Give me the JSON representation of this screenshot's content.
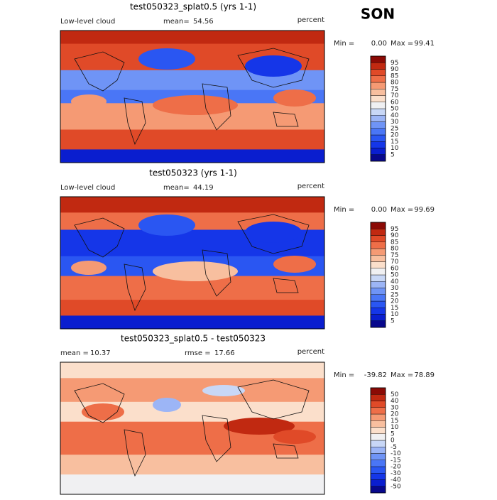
{
  "season": "SON",
  "panels": [
    {
      "title": "test050323_splat0.5 (yrs 1-1)",
      "variable": "Low-level cloud",
      "stats": [
        {
          "label": "mean=",
          "value": "54.56"
        }
      ],
      "units": "percent",
      "min_label": "Min =",
      "min": "0.00",
      "max_label": "Max =",
      "max": "99.41",
      "levels": [
        5,
        10,
        15,
        20,
        25,
        30,
        40,
        50,
        60,
        70,
        75,
        80,
        85,
        90,
        95
      ],
      "colors": [
        "#08088c",
        "#0a1ecf",
        "#1536e8",
        "#2a56f2",
        "#4a76f6",
        "#6f94f6",
        "#9cb5f6",
        "#c8d7f6",
        "#f0f0f2",
        "#fbdfcb",
        "#f8bf9f",
        "#f59a74",
        "#ee6e48",
        "#e04a28",
        "#c12911",
        "#8b0a05"
      ]
    },
    {
      "title": "test050323 (yrs 1-1)",
      "variable": "Low-level cloud",
      "stats": [
        {
          "label": "mean=",
          "value": "44.19"
        }
      ],
      "units": "percent",
      "min_label": "Min =",
      "min": "0.00",
      "max_label": "Max =",
      "max": "99.69",
      "levels": [
        5,
        10,
        15,
        20,
        25,
        30,
        40,
        50,
        60,
        70,
        75,
        80,
        85,
        90,
        95
      ],
      "colors": [
        "#08088c",
        "#0a1ecf",
        "#1536e8",
        "#2a56f2",
        "#4a76f6",
        "#6f94f6",
        "#9cb5f6",
        "#c8d7f6",
        "#f0f0f2",
        "#fbdfcb",
        "#f8bf9f",
        "#f59a74",
        "#ee6e48",
        "#e04a28",
        "#c12911",
        "#8b0a05"
      ]
    },
    {
      "title": "test050323_splat0.5 - test050323",
      "stats": [
        {
          "label": "mean =",
          "value": "10.37"
        },
        {
          "label": "rmse =",
          "value": "17.66"
        }
      ],
      "units": "percent",
      "min_label": "Min =",
      "min": "-39.82",
      "max_label": "Max =",
      "max": "78.89",
      "levels": [
        -50,
        -40,
        -30,
        -20,
        -15,
        -10,
        -5,
        0,
        5,
        10,
        15,
        20,
        30,
        40,
        50
      ],
      "colors": [
        "#08088c",
        "#0a1ecf",
        "#1536e8",
        "#2a56f2",
        "#4a76f6",
        "#6f94f6",
        "#9cb5f6",
        "#c8d7f6",
        "#f0f0f2",
        "#fbdfcb",
        "#f8bf9f",
        "#f59a74",
        "#ee6e48",
        "#e04a28",
        "#c12911",
        "#8b0a05"
      ]
    }
  ]
}
